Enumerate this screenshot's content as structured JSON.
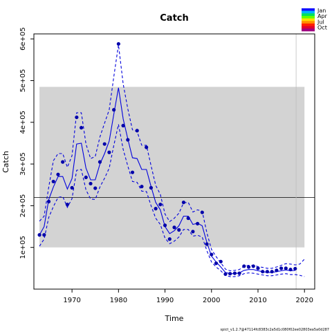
{
  "chart_data": {
    "type": "line",
    "title": "Catch",
    "xlabel": "Time",
    "ylabel": "Catch",
    "xlim": [
      1961.8,
      2022.2
    ],
    "ylim": [
      0,
      612000
    ],
    "x_ticks": [
      1970,
      1980,
      1990,
      2000,
      2010,
      2020
    ],
    "x_tick_labels": [
      "1970",
      "1980",
      "1990",
      "2000",
      "2010",
      "2020"
    ],
    "y_ticks": [
      100000,
      200000,
      300000,
      400000,
      500000,
      600000
    ],
    "y_tick_labels": [
      "1e+05",
      "2e+05",
      "3e+05",
      "4e+05",
      "5e+05",
      "6e+05"
    ],
    "band": {
      "x_from": 1963,
      "x_to": 2020,
      "y_from": 100000,
      "y_to": 485000,
      "color": "#d3d3d3"
    },
    "hline": {
      "y": 220000,
      "color": "#000000"
    },
    "vline": {
      "x": 2018.2,
      "color": "#bebebe"
    },
    "series": [
      {
        "kind": "observed-points",
        "color": "#0000aa",
        "x": [
          1963,
          1964,
          1965,
          1966,
          1967,
          1968,
          1969,
          1970,
          1971,
          1972,
          1973,
          1974,
          1975,
          1976,
          1977,
          1978,
          1979,
          1980,
          1981,
          1982,
          1983,
          1984,
          1985,
          1986,
          1987,
          1988,
          1989,
          1990,
          1991,
          1992,
          1993,
          1994,
          1995,
          1996,
          1997,
          1998,
          1999,
          2000,
          2001,
          2002,
          2003,
          2004,
          2005,
          2006,
          2007,
          2008,
          2009,
          2010,
          2011,
          2012,
          2013,
          2014,
          2015,
          2016,
          2017,
          2018
        ],
        "values": [
          130000,
          130000,
          210000,
          258000,
          275000,
          305000,
          203000,
          243000,
          412000,
          387000,
          268000,
          253000,
          242000,
          305000,
          348000,
          328000,
          430000,
          588000,
          392000,
          358000,
          280000,
          380000,
          246000,
          340000,
          243000,
          193000,
          203000,
          153000,
          120000,
          148000,
          142000,
          208000,
          170000,
          138000,
          157000,
          184000,
          108000,
          83000,
          62000,
          66000,
          36000,
          37000,
          38000,
          38000,
          55000,
          53000,
          55000,
          50000,
          42000,
          42000,
          42000,
          45000,
          50000,
          50000,
          47000,
          49000
        ]
      },
      {
        "kind": "fitted-median",
        "color": "#0000dd",
        "x": [
          1963,
          1964,
          1965,
          1966,
          1967,
          1968,
          1969,
          1970,
          1971,
          1972,
          1973,
          1974,
          1975,
          1976,
          1977,
          1978,
          1979,
          1980,
          1981,
          1982,
          1983,
          1984,
          1985,
          1986,
          1987,
          1988,
          1989,
          1990,
          1991,
          1992,
          1993,
          1994,
          1995,
          1996,
          1997,
          1998,
          1999,
          2000,
          2001,
          2002,
          2003,
          2004,
          2005,
          2006,
          2007,
          2008,
          2009,
          2010,
          2011,
          2012,
          2013,
          2014,
          2015,
          2016,
          2017,
          2018
        ],
        "values": [
          130000,
          150000,
          215000,
          245000,
          270000,
          270000,
          240000,
          265000,
          348000,
          350000,
          290000,
          262000,
          262000,
          300000,
          325000,
          355000,
          420000,
          483000,
          408000,
          360000,
          315000,
          313000,
          287000,
          287000,
          246000,
          208000,
          190000,
          150000,
          133000,
          140000,
          152000,
          175000,
          175000,
          155000,
          158000,
          152000,
          112000,
          79000,
          65000,
          53000,
          40000,
          37000,
          37000,
          39000,
          45000,
          47000,
          47000,
          44000,
          42000,
          40000,
          40000,
          42000,
          44000,
          46000,
          44000,
          45000
        ]
      },
      {
        "kind": "fitted-upper",
        "color": "#0000dd",
        "dashed": true,
        "x": [
          1963,
          1964,
          1965,
          1966,
          1967,
          1968,
          1969,
          1970,
          1971,
          1972,
          1973,
          1974,
          1975,
          1976,
          1977,
          1978,
          1979,
          1980,
          1981,
          1982,
          1983,
          1984,
          1985,
          1986,
          1987,
          1988,
          1989,
          1990,
          1991,
          1992,
          1993,
          1994,
          1995,
          1996,
          1997,
          1998,
          1999,
          2000,
          2001,
          2002,
          2003,
          2004,
          2005,
          2006,
          2007,
          2008,
          2009,
          2010,
          2011,
          2012,
          2013,
          2014,
          2015,
          2016,
          2017,
          2018,
          2019,
          2020
        ],
        "values": [
          163000,
          175000,
          245000,
          308000,
          325000,
          325000,
          292000,
          320000,
          423000,
          423000,
          348000,
          313000,
          318000,
          365000,
          398000,
          430000,
          510000,
          586000,
          492000,
          432000,
          382000,
          378000,
          345000,
          345000,
          296000,
          249000,
          227000,
          180000,
          162000,
          170000,
          182000,
          207000,
          208000,
          185000,
          190000,
          187000,
          135000,
          95000,
          78000,
          63000,
          48000,
          44000,
          45000,
          47000,
          55000,
          57000,
          57000,
          54000,
          52000,
          50000,
          50000,
          53000,
          57000,
          61000,
          60000,
          58000,
          60000,
          72000
        ]
      },
      {
        "kind": "fitted-lower",
        "color": "#0000dd",
        "dashed": true,
        "x": [
          1963,
          1964,
          1965,
          1966,
          1967,
          1968,
          1969,
          1970,
          1971,
          1972,
          1973,
          1974,
          1975,
          1976,
          1977,
          1978,
          1979,
          1980,
          1981,
          1982,
          1983,
          1984,
          1985,
          1986,
          1987,
          1988,
          1989,
          1990,
          1991,
          1992,
          1993,
          1994,
          1995,
          1996,
          1997,
          1998,
          1999,
          2000,
          2001,
          2002,
          2003,
          2004,
          2005,
          2006,
          2007,
          2008,
          2009,
          2010,
          2011,
          2012,
          2013,
          2014,
          2015,
          2016,
          2017,
          2018,
          2019,
          2020
        ],
        "values": [
          103000,
          120000,
          172000,
          198000,
          220000,
          222000,
          196000,
          217000,
          285000,
          287000,
          238000,
          216000,
          215000,
          245000,
          266000,
          290000,
          345000,
          395000,
          335000,
          295000,
          258000,
          256000,
          235000,
          234000,
          200000,
          170000,
          155000,
          122000,
          109000,
          115000,
          125000,
          143000,
          143000,
          127000,
          129000,
          125000,
          92000,
          65000,
          53000,
          44000,
          33000,
          30000,
          30000,
          32000,
          37000,
          39000,
          38000,
          36000,
          34000,
          32000,
          32000,
          34000,
          36000,
          37000,
          35000,
          35000,
          33000,
          30000
        ]
      }
    ],
    "legend": {
      "placement": "top-right",
      "labels": [
        "Jan",
        "Apr",
        "Jul",
        "Oct"
      ],
      "colors": [
        "#1010ff",
        "#00b4ff",
        "#00e060",
        "#60ff00",
        "#ffe000",
        "#ff8c00",
        "#ff2000",
        "#e00030",
        "#a00080"
      ]
    },
    "footer": "spict_v1.2.7@47114fc8383c2a5d1c080f02ee02803ea5a0d287"
  }
}
